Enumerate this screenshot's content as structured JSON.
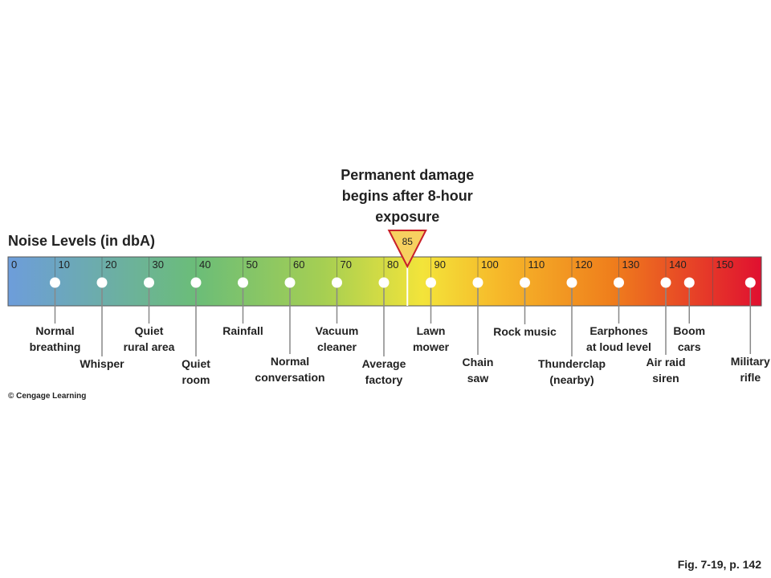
{
  "title": "Noise Levels (in dbA)",
  "damage": {
    "lines": [
      "Permanent damage",
      "begins after 8-hour",
      "exposure"
    ],
    "level": 85
  },
  "scale": {
    "ticks": [
      0,
      10,
      20,
      30,
      40,
      50,
      60,
      70,
      80,
      90,
      100,
      110,
      120,
      130,
      140,
      150
    ]
  },
  "sources": [
    {
      "lines": [
        "Normal",
        "breathing"
      ],
      "level": 10
    },
    {
      "lines": [
        "Whisper"
      ],
      "level": 20
    },
    {
      "lines": [
        "Quiet",
        "rural area"
      ],
      "level": 30
    },
    {
      "lines": [
        "Quiet",
        "room"
      ],
      "level": 40
    },
    {
      "lines": [
        "Rainfall"
      ],
      "level": 50
    },
    {
      "lines": [
        "Normal",
        "conversation"
      ],
      "level": 60
    },
    {
      "lines": [
        "Vacuum",
        "cleaner"
      ],
      "level": 70
    },
    {
      "lines": [
        "Average",
        "factory"
      ],
      "level": 80
    },
    {
      "lines": [
        "Lawn",
        "mower"
      ],
      "level": 90
    },
    {
      "lines": [
        "Chain",
        "saw"
      ],
      "level": 100
    },
    {
      "lines": [
        "Rock music"
      ],
      "level": 110
    },
    {
      "lines": [
        "Thunderclap",
        "(nearby)"
      ],
      "level": 120
    },
    {
      "lines": [
        "Earphones",
        "at loud level"
      ],
      "level": 130
    },
    {
      "lines": [
        "Air raid",
        "siren"
      ],
      "level": 140
    },
    {
      "lines": [
        "Boom",
        "cars"
      ],
      "level": 145
    },
    {
      "lines": [
        "Military",
        "rifle"
      ],
      "level": 158
    }
  ],
  "credit": "© Cengage Learning",
  "figure": "Fig. 7-19, p. 142"
}
